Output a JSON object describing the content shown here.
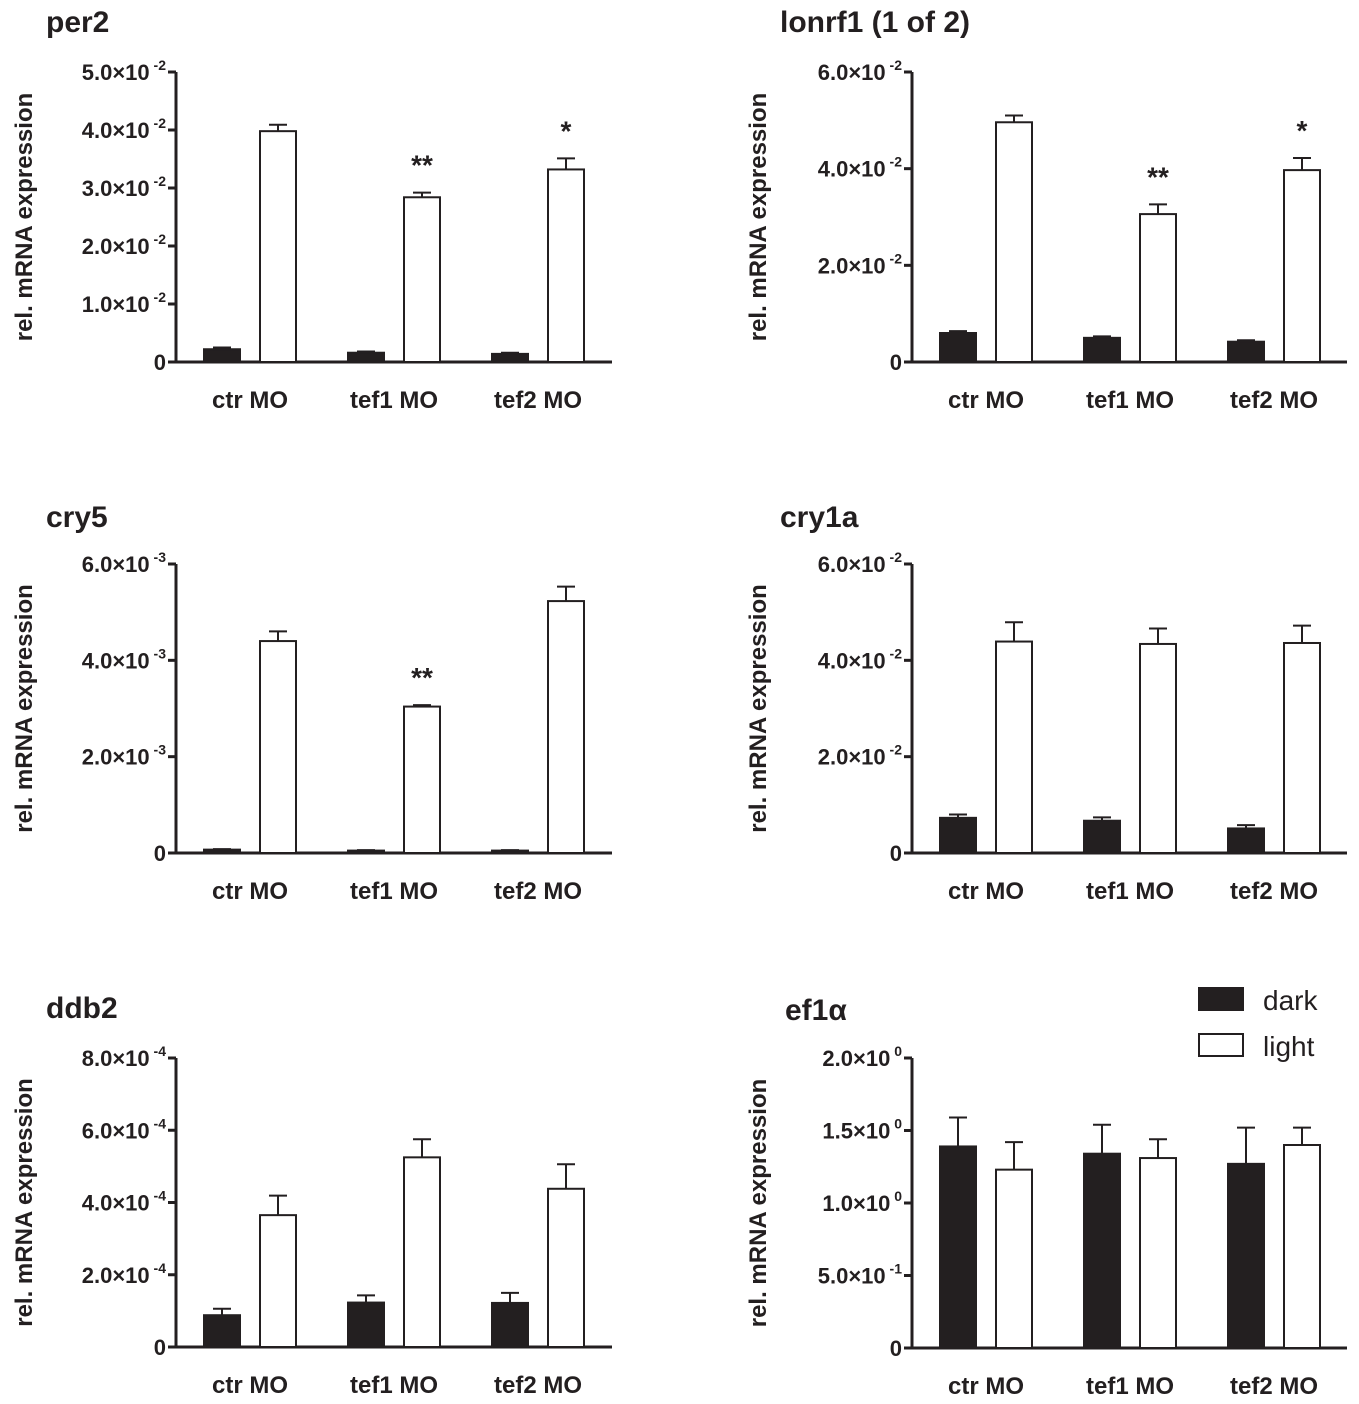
{
  "legend": {
    "dark": {
      "label": "dark",
      "color": "#231f20"
    },
    "light": {
      "label": "light",
      "color": "#ffffff"
    }
  },
  "chart_data": [
    {
      "type": "bar",
      "title": "per2",
      "ylabel": "rel. mRNA expression",
      "categories": [
        "ctr MO",
        "tef1 MO",
        "tef2 MO"
      ],
      "ylim": [
        0,
        0.05
      ],
      "ticks": [
        {
          "mant": "0",
          "exp": ""
        },
        {
          "mant": "1.0×10",
          "exp": "-2"
        },
        {
          "mant": "2.0×10",
          "exp": "-2"
        },
        {
          "mant": "3.0×10",
          "exp": "-2"
        },
        {
          "mant": "4.0×10",
          "exp": "-2"
        },
        {
          "mant": "5.0×10",
          "exp": "-2"
        }
      ],
      "series": [
        {
          "name": "dark",
          "values": [
            0.0022,
            0.0016,
            0.0014
          ],
          "errors": [
            0.0003,
            0.0002,
            0.0002
          ]
        },
        {
          "name": "light",
          "values": [
            0.0398,
            0.0284,
            0.0332
          ],
          "errors": [
            0.0011,
            0.0008,
            0.0019
          ]
        }
      ],
      "annotations": [
        "",
        "**",
        "*"
      ]
    },
    {
      "type": "bar",
      "title": "lonrf1 (1 of 2)",
      "ylabel": "rel. mRNA expression",
      "categories": [
        "ctr MO",
        "tef1 MO",
        "tef2 MO"
      ],
      "ylim": [
        0,
        0.06
      ],
      "ticks": [
        {
          "mant": "0",
          "exp": ""
        },
        {
          "mant": "2.0×10",
          "exp": "-2"
        },
        {
          "mant": "4.0×10",
          "exp": "-2"
        },
        {
          "mant": "6.0×10",
          "exp": "-2"
        }
      ],
      "series": [
        {
          "name": "dark",
          "values": [
            0.006,
            0.005,
            0.0042
          ],
          "errors": [
            0.0004,
            0.0003,
            0.0003
          ]
        },
        {
          "name": "light",
          "values": [
            0.0496,
            0.0306,
            0.0397
          ],
          "errors": [
            0.0014,
            0.002,
            0.0025
          ]
        }
      ],
      "annotations": [
        "",
        "**",
        "*"
      ]
    },
    {
      "type": "bar",
      "title": "cry5",
      "ylabel": "rel. mRNA expression",
      "categories": [
        "ctr MO",
        "tef1 MO",
        "tef2 MO"
      ],
      "ylim": [
        0,
        0.006
      ],
      "ticks": [
        {
          "mant": "0",
          "exp": ""
        },
        {
          "mant": "2.0×10",
          "exp": "-3"
        },
        {
          "mant": "4.0×10",
          "exp": "-3"
        },
        {
          "mant": "6.0×10",
          "exp": "-3"
        }
      ],
      "series": [
        {
          "name": "dark",
          "values": [
            7e-05,
            5e-05,
            5e-05
          ],
          "errors": [
            1e-05,
            1e-05,
            1e-05
          ]
        },
        {
          "name": "light",
          "values": [
            0.0044,
            0.00304,
            0.00523
          ],
          "errors": [
            0.0002,
            3e-05,
            0.0003
          ]
        }
      ],
      "annotations": [
        "",
        "**",
        ""
      ]
    },
    {
      "type": "bar",
      "title": "cry1a",
      "ylabel": "rel. mRNA expression",
      "categories": [
        "ctr MO",
        "tef1 MO",
        "tef2 MO"
      ],
      "ylim": [
        0,
        0.06
      ],
      "ticks": [
        {
          "mant": "0",
          "exp": ""
        },
        {
          "mant": "2.0×10",
          "exp": "-2"
        },
        {
          "mant": "4.0×10",
          "exp": "-2"
        },
        {
          "mant": "6.0×10",
          "exp": "-2"
        }
      ],
      "series": [
        {
          "name": "dark",
          "values": [
            0.0073,
            0.0067,
            0.0051
          ],
          "errors": [
            0.0007,
            0.0007,
            0.0007
          ]
        },
        {
          "name": "light",
          "values": [
            0.0439,
            0.0434,
            0.0436
          ],
          "errors": [
            0.004,
            0.0032,
            0.0036
          ]
        }
      ],
      "annotations": [
        "",
        "",
        ""
      ]
    },
    {
      "type": "bar",
      "title": "ddb2",
      "ylabel": "rel. mRNA expression",
      "categories": [
        "ctr MO",
        "tef1 MO",
        "tef2 MO"
      ],
      "ylim": [
        0,
        0.0008
      ],
      "ticks": [
        {
          "mant": "0",
          "exp": ""
        },
        {
          "mant": "2.0×10",
          "exp": "-4"
        },
        {
          "mant": "4.0×10",
          "exp": "-4"
        },
        {
          "mant": "6.0×10",
          "exp": "-4"
        },
        {
          "mant": "8.0×10",
          "exp": "-4"
        }
      ],
      "series": [
        {
          "name": "dark",
          "values": [
            8.8e-05,
            0.000123,
            0.000122
          ],
          "errors": [
            1.8e-05,
            2e-05,
            2.8e-05
          ]
        },
        {
          "name": "light",
          "values": [
            0.000365,
            0.000525,
            0.000438
          ],
          "errors": [
            5.4e-05,
            5e-05,
            6.8e-05
          ]
        }
      ],
      "annotations": [
        "",
        "",
        ""
      ]
    },
    {
      "type": "bar",
      "title": "ef1α",
      "ylabel": "rel. mRNA expression",
      "categories": [
        "ctr MO",
        "tef1 MO",
        "tef2 MO"
      ],
      "ylim": [
        0,
        2.0
      ],
      "ticks": [
        {
          "mant": "0",
          "exp": ""
        },
        {
          "mant": "5.0×10",
          "exp": "-1"
        },
        {
          "mant": "1.0×10",
          "exp": "0"
        },
        {
          "mant": "1.5×10",
          "exp": "0"
        },
        {
          "mant": "2.0×10",
          "exp": "0"
        }
      ],
      "series": [
        {
          "name": "dark",
          "values": [
            1.39,
            1.34,
            1.27
          ],
          "errors": [
            0.2,
            0.2,
            0.25
          ]
        },
        {
          "name": "light",
          "values": [
            1.23,
            1.31,
            1.4
          ],
          "errors": [
            0.19,
            0.13,
            0.12
          ]
        }
      ],
      "annotations": [
        "",
        "",
        ""
      ]
    }
  ]
}
